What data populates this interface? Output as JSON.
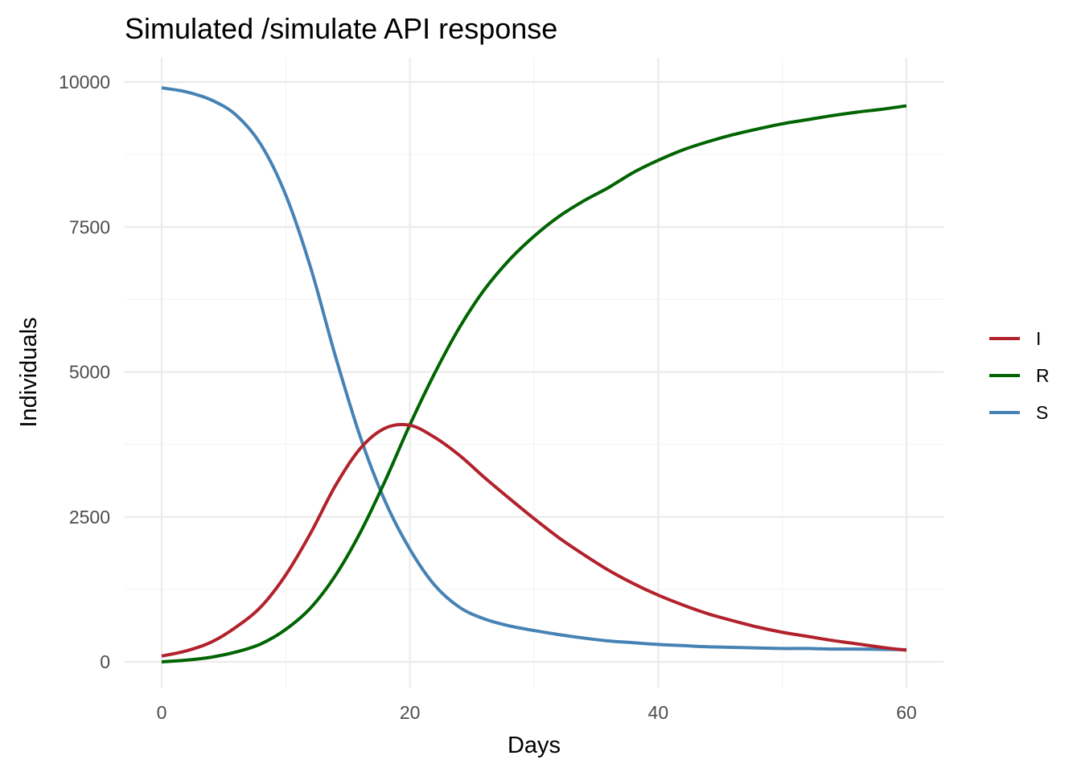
{
  "chart_data": {
    "type": "line",
    "title": "Simulated /simulate API response",
    "xlabel": "Days",
    "ylabel": "Individuals",
    "xlim": [
      0,
      60
    ],
    "ylim": [
      0,
      10000
    ],
    "x_ticks": [
      0,
      20,
      40,
      60
    ],
    "y_ticks": [
      0,
      2500,
      5000,
      7500,
      10000
    ],
    "x_tick_labels": [
      "0",
      "20",
      "40",
      "60"
    ],
    "y_tick_labels": [
      "0",
      "2500",
      "5000",
      "7500",
      "10000"
    ],
    "grid": true,
    "legend_position": "right",
    "legend": [
      {
        "name": "I",
        "color": "#b2222c"
      },
      {
        "name": "R",
        "color": "#006400"
      },
      {
        "name": "S",
        "color": "#4682b4"
      }
    ],
    "x": [
      0,
      2,
      4,
      6,
      8,
      10,
      12,
      14,
      16,
      18,
      20,
      22,
      24,
      26,
      28,
      30,
      32,
      34,
      36,
      38,
      40,
      42,
      44,
      46,
      48,
      50,
      52,
      54,
      56,
      58,
      60
    ],
    "series": [
      {
        "name": "I",
        "color": "#b2222c",
        "values": [
          100,
          190,
          340,
          600,
          950,
          1500,
          2220,
          3040,
          3680,
          4030,
          4080,
          3870,
          3560,
          3180,
          2820,
          2470,
          2140,
          1850,
          1580,
          1350,
          1150,
          980,
          830,
          710,
          600,
          510,
          440,
          370,
          310,
          250,
          200
        ]
      },
      {
        "name": "R",
        "color": "#006400",
        "values": [
          0,
          30,
          80,
          170,
          310,
          560,
          930,
          1490,
          2230,
          3120,
          4090,
          4980,
          5770,
          6420,
          6930,
          7340,
          7680,
          7950,
          8180,
          8440,
          8650,
          8830,
          8970,
          9090,
          9190,
          9280,
          9350,
          9420,
          9480,
          9530,
          9590
        ]
      },
      {
        "name": "S",
        "color": "#4682b4",
        "values": [
          9900,
          9830,
          9690,
          9430,
          8920,
          8050,
          6800,
          5270,
          3880,
          2770,
          1940,
          1320,
          940,
          740,
          620,
          540,
          470,
          410,
          360,
          330,
          300,
          280,
          260,
          250,
          240,
          230,
          230,
          220,
          220,
          215,
          210
        ]
      }
    ]
  }
}
